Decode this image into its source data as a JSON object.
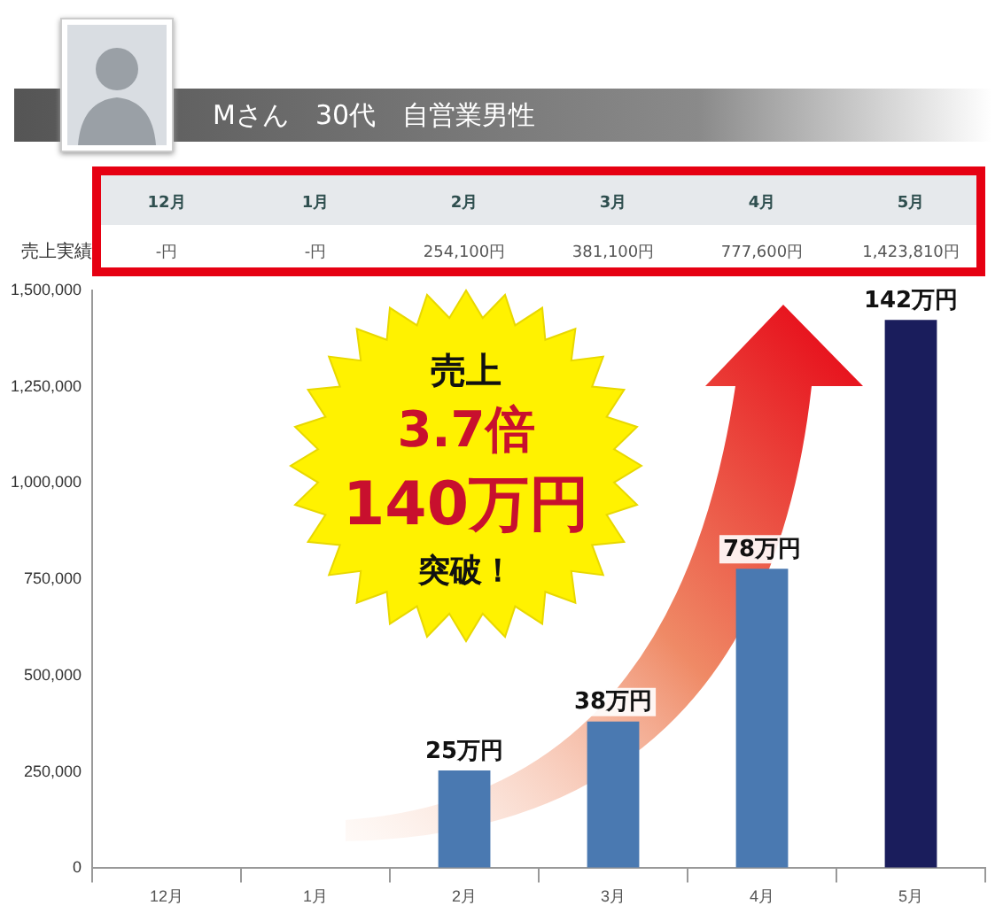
{
  "chart_data": {
    "type": "bar",
    "title": "Mさん　30代　自営業男性",
    "categories": [
      "12月",
      "1月",
      "2月",
      "3月",
      "4月",
      "5月"
    ],
    "values": [
      null,
      null,
      254100,
      381100,
      777600,
      1423810
    ],
    "colors": [
      "#4a79b1",
      "#4a79b1",
      "#4a79b1",
      "#4a79b1",
      "#4a79b1",
      "#1a1d5c"
    ],
    "value_labels": [
      null,
      null,
      "254,100円",
      "381,100円",
      "777,600円",
      "1,423,810円"
    ],
    "ylim": [
      0,
      1500000
    ],
    "yticks": [
      0,
      {
        "value": 250000,
        "label": "250,000"
      },
      {
        "value": 500000,
        "label": "500,000"
      },
      {
        "value": 750000,
        "label": "750,000"
      },
      {
        "value": 1000000,
        "label": "1,000,000"
      },
      {
        "value": 1250000,
        "label": "1,250,000"
      },
      {
        "value": 1500000,
        "label": "1,500,000"
      }
    ],
    "grid": false,
    "legend": false,
    "annotations": [
      "売上実績",
      "-円",
      "-円",
      "売上",
      "3.7倍",
      "140万円",
      "突破！",
      {
        "text": "25万円",
        "x": "2月",
        "y": 254100
      },
      {
        "text": "38万円",
        "x": "3月",
        "y": 381100
      },
      {
        "text": "78万円",
        "x": "4月",
        "y": 777600
      },
      {
        "text": "142万円",
        "x": "5月",
        "y": 1423810
      }
    ]
  }
}
